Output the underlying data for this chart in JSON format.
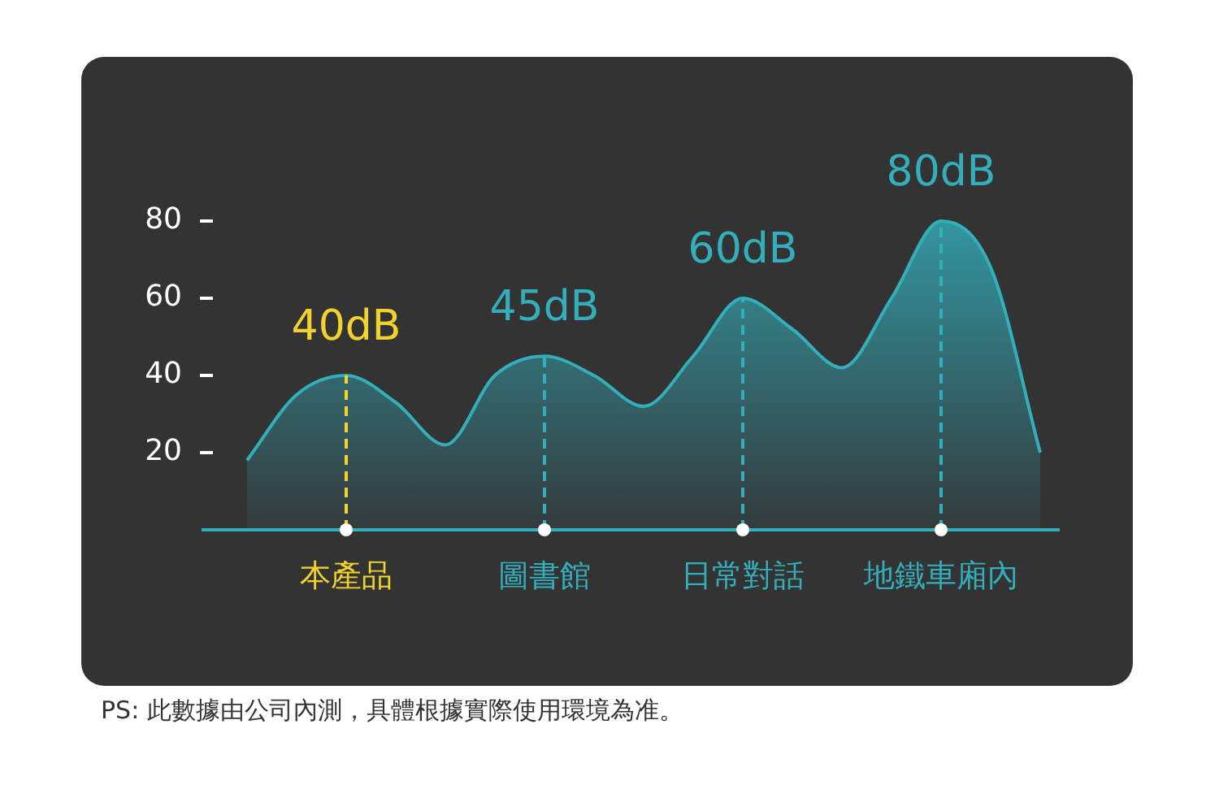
{
  "chart_data": {
    "type": "area",
    "categories": [
      null,
      null,
      "本產品",
      null,
      null,
      null,
      "圖書館",
      null,
      null,
      null,
      "日常對話",
      null,
      null,
      null,
      "地鐵車廂內",
      null,
      null
    ],
    "series": [
      {
        "color": "#33aebb",
        "values": [
          18,
          35,
          40,
          33,
          22,
          40,
          45,
          40,
          32,
          45,
          60,
          52,
          42,
          60,
          80,
          68,
          20
        ]
      }
    ],
    "ylim": [
      0,
      80
    ],
    "yticks": [
      20,
      40,
      60,
      80
    ],
    "ref_lines": [
      {
        "axis": "x",
        "value": "本產品",
        "color": "#f2d22e",
        "line_style": "dashed"
      },
      {
        "axis": "x",
        "value": "圖書館",
        "color": "#33aebb",
        "line_style": "dashed"
      },
      {
        "axis": "x",
        "value": "日常對話",
        "color": "#33aebb",
        "line_style": "dashed"
      },
      {
        "axis": "x",
        "value": "地鐵車廂內",
        "color": "#33aebb",
        "line_style": "dashed"
      }
    ],
    "annotations": [
      {
        "text": "40dB",
        "x": "本產品",
        "y": 40
      },
      {
        "text": "45dB",
        "x": "圖書館",
        "y": 45
      },
      {
        "text": "60dB",
        "x": "日常對話",
        "y": 60
      },
      {
        "text": "80dB",
        "x": "地鐵車廂內",
        "y": 80
      },
      "PS: 此數據由公司內測，具體根據實際使用環境為准。"
    ],
    "grid": false,
    "legend": false
  }
}
